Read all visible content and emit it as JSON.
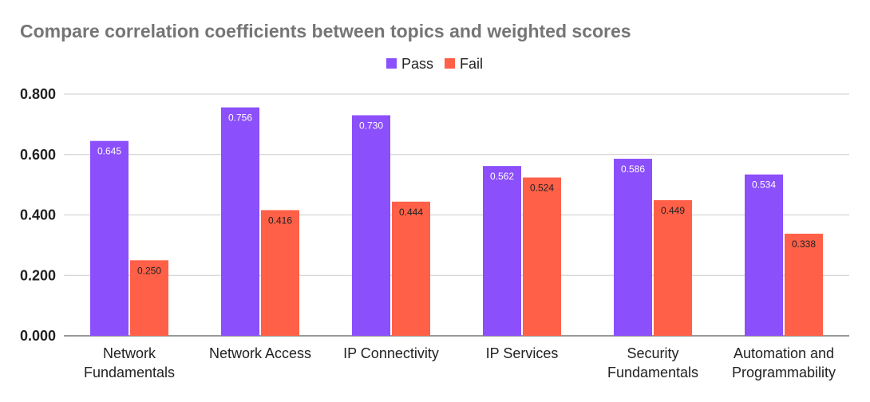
{
  "chart_data": {
    "type": "bar",
    "title": "Compare correlation coefficients between topics and weighted scores",
    "xlabel": "",
    "ylabel": "",
    "categories": [
      [
        "Network",
        "Fundamentals"
      ],
      [
        "Network Access"
      ],
      [
        "IP Connectivity"
      ],
      [
        "IP Services"
      ],
      [
        "Security",
        "Fundamentals"
      ],
      [
        "Automation and",
        "Programmability"
      ]
    ],
    "series": [
      {
        "name": "Pass",
        "color": "#8b4ffb",
        "label_color": "#ffffff",
        "values": [
          0.645,
          0.756,
          0.73,
          0.562,
          0.586,
          0.534
        ],
        "labels": [
          "0.645",
          "0.756",
          "0.730",
          "0.562",
          "0.586",
          "0.534"
        ]
      },
      {
        "name": "Fail",
        "color": "#ff6047",
        "label_color": "#222222",
        "values": [
          0.25,
          0.416,
          0.444,
          0.524,
          0.449,
          0.338
        ],
        "labels": [
          "0.250",
          "0.416",
          "0.444",
          "0.524",
          "0.449",
          "0.338"
        ]
      }
    ],
    "ylim": [
      0,
      0.8
    ],
    "yticks": [
      0,
      0.2,
      0.4,
      0.6,
      0.8
    ],
    "ytick_labels": [
      "0.000",
      "0.200",
      "0.400",
      "0.600",
      "0.800"
    ],
    "grid": true,
    "legend_position": "top"
  }
}
